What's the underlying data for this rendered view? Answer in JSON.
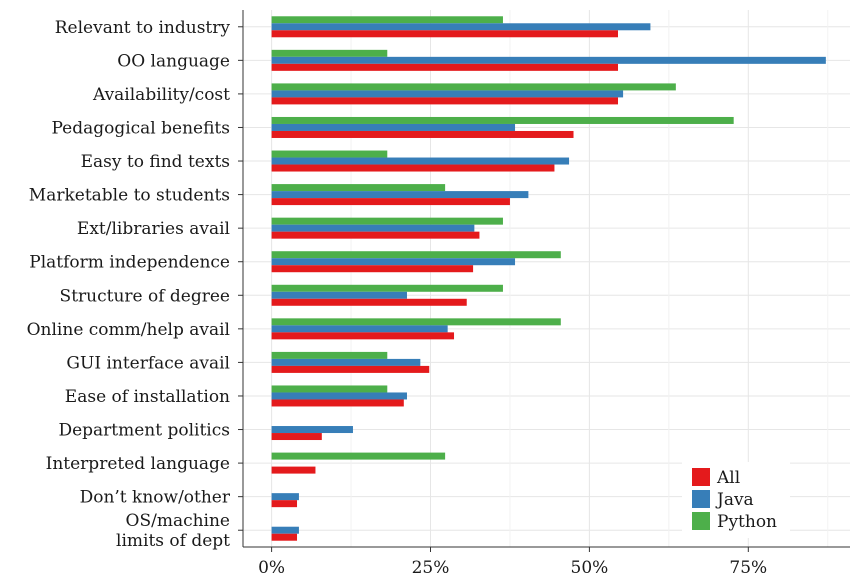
{
  "chart_data": {
    "type": "bar",
    "orientation": "horizontal",
    "categories": [
      "Relevant to industry",
      "OO language",
      "Availability/cost",
      "Pedagogical benefits",
      "Easy to find texts",
      "Marketable to students",
      "Ext/libraries avail",
      "Platform independence",
      "Structure of degree",
      "Online comm/help avail",
      "GUI interface avail",
      "Ease of installation",
      "Department politics",
      "Interpreted language",
      "Don’t know/other",
      "OS/machine limits of dept"
    ],
    "series": [
      {
        "name": "All",
        "color": "#e41a1c",
        "values": [
          54.5,
          54.5,
          54.5,
          47.5,
          44.5,
          37.5,
          32.7,
          31.7,
          30.7,
          28.7,
          24.8,
          20.8,
          7.9,
          6.9,
          4.0,
          4.0
        ]
      },
      {
        "name": "Java",
        "color": "#377eb8",
        "values": [
          59.6,
          87.2,
          55.3,
          38.3,
          46.8,
          40.4,
          31.9,
          38.3,
          21.3,
          27.7,
          23.4,
          21.3,
          12.8,
          0,
          4.3,
          4.3
        ]
      },
      {
        "name": "Python",
        "color": "#4daf4a",
        "values": [
          36.4,
          18.2,
          63.6,
          72.7,
          18.2,
          27.3,
          36.4,
          45.5,
          36.4,
          45.5,
          18.2,
          18.2,
          0,
          27.3,
          0,
          0
        ]
      }
    ],
    "xticks": [
      0,
      25,
      50,
      75
    ],
    "xtick_labels": [
      "0%",
      "25%",
      "50%",
      "75%"
    ],
    "xlim": [
      -4.5,
      91
    ],
    "xlabel": "",
    "ylabel": "",
    "title": "",
    "grid": true,
    "legend": {
      "position": "bottom-right",
      "labels": [
        "All",
        "Java",
        "Python"
      ]
    }
  }
}
